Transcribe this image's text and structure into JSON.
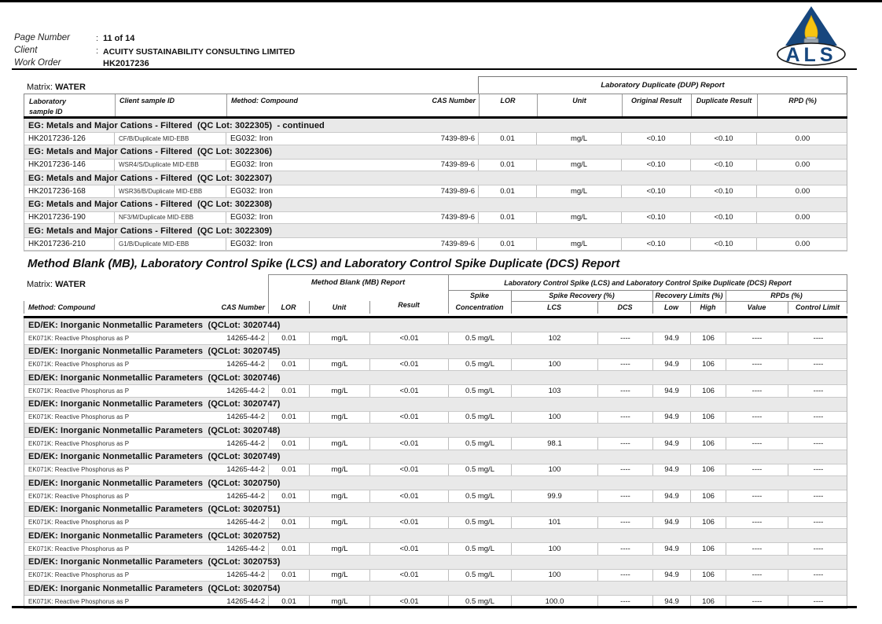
{
  "page_header": {
    "fields": [
      {
        "label": "Page Number",
        "colon": ":",
        "value": "11 of 14"
      },
      {
        "label": "Client",
        "colon": ":",
        "value": "ACUITY SUSTAINABILITY CONSULTING LIMITED"
      },
      {
        "label": "Work Order",
        "colon": "",
        "value": "HK2017236"
      }
    ]
  },
  "logo": {
    "text": "ALS",
    "blue": "#17477e",
    "flame_yellow": "#f8c411"
  },
  "dup_table": {
    "matrix_label": "Matrix:",
    "matrix_value": "WATER",
    "group_header": "Laboratory Duplicate (DUP) Report",
    "columns": {
      "lab_id_line1": "Laboratory",
      "lab_id_line2": "sample ID",
      "client_id": "Client sample ID",
      "method": "Method: Compound",
      "cas": "CAS Number",
      "lor": "LOR",
      "unit": "Unit",
      "original": "Original Result",
      "duplicate": "Duplicate Result",
      "rpd": "RPD (%)"
    },
    "sections": [
      {
        "title": "EG: Metals and Major Cations - Filtered  (QC Lot: 3022305)  - continued",
        "rows": [
          {
            "lab_id": "HK2017236-126",
            "client_id": "CF/B/Duplicate MID-EBB",
            "method": "EG032: Iron",
            "cas": "7439-89-6",
            "lor": "0.01",
            "unit": "mg/L",
            "original": "<0.10",
            "duplicate": "<0.10",
            "rpd": "0.00"
          }
        ]
      },
      {
        "title": "EG: Metals and Major Cations - Filtered  (QC Lot: 3022306)",
        "rows": [
          {
            "lab_id": "HK2017236-146",
            "client_id": "WSR4/S/Duplicate MID-EBB",
            "method": "EG032: Iron",
            "cas": "7439-89-6",
            "lor": "0.01",
            "unit": "mg/L",
            "original": "<0.10",
            "duplicate": "<0.10",
            "rpd": "0.00"
          }
        ]
      },
      {
        "title": "EG: Metals and Major Cations - Filtered  (QC Lot: 3022307)",
        "rows": [
          {
            "lab_id": "HK2017236-168",
            "client_id": "WSR36/B/Duplicate MID-EBB",
            "method": "EG032: Iron",
            "cas": "7439-89-6",
            "lor": "0.01",
            "unit": "mg/L",
            "original": "<0.10",
            "duplicate": "<0.10",
            "rpd": "0.00"
          }
        ]
      },
      {
        "title": "EG: Metals and Major Cations - Filtered  (QC Lot: 3022308)",
        "rows": [
          {
            "lab_id": "HK2017236-190",
            "client_id": "NF3/M/Duplicate MID-EBB",
            "method": "EG032: Iron",
            "cas": "7439-89-6",
            "lor": "0.01",
            "unit": "mg/L",
            "original": "<0.10",
            "duplicate": "<0.10",
            "rpd": "0.00"
          }
        ]
      },
      {
        "title": "EG: Metals and Major Cations - Filtered  (QC Lot: 3022309)",
        "rows": [
          {
            "lab_id": "HK2017236-210",
            "client_id": "G1/B/Duplicate MID-EBB",
            "method": "EG032: Iron",
            "cas": "7439-89-6",
            "lor": "0.01",
            "unit": "mg/L",
            "original": "<0.10",
            "duplicate": "<0.10",
            "rpd": "0.00"
          }
        ]
      }
    ]
  },
  "mb_table": {
    "title": "Method Blank (MB), Laboratory Control Spike (LCS) and Laboratory Control Spike Duplicate (DCS) Report",
    "matrix_label": "Matrix:",
    "matrix_value": "WATER",
    "headers": {
      "mb_group": "Method Blank (MB) Report",
      "lcs_group": "Laboratory Control Spike (LCS) and Laboratory Control Spike Duplicate (DCS) Report",
      "spike_line1": "Spike",
      "spike_line2": "Concentration",
      "spike_recovery": "Spike Recovery (%)",
      "recovery_limits": "Recovery Limits (%)",
      "rpds": "RPDs (%)",
      "method": "Method: Compound",
      "cas": "CAS Number",
      "lor": "LOR",
      "unit": "Unit",
      "result": "Result",
      "lcs": "LCS",
      "dcs": "DCS",
      "low": "Low",
      "high": "High",
      "value": "Value",
      "control_limit": "Control Limit"
    },
    "sections": [
      {
        "title": "ED/EK: Inorganic Nonmetallic Parameters  (QCLot: 3020744)",
        "row": {
          "method": "EK071K: Reactive Phosphorus as P",
          "cas": "14265-44-2",
          "lor": "0.01",
          "unit": "mg/L",
          "result": "<0.01",
          "spike_conc": "0.5 mg/L",
          "lcs": "102",
          "dcs": "----",
          "low": "94.9",
          "high": "106",
          "value": "----",
          "control_limit": "----"
        }
      },
      {
        "title": "ED/EK: Inorganic Nonmetallic Parameters  (QCLot: 3020745)",
        "row": {
          "method": "EK071K: Reactive Phosphorus as P",
          "cas": "14265-44-2",
          "lor": "0.01",
          "unit": "mg/L",
          "result": "<0.01",
          "spike_conc": "0.5 mg/L",
          "lcs": "100",
          "dcs": "----",
          "low": "94.9",
          "high": "106",
          "value": "----",
          "control_limit": "----"
        }
      },
      {
        "title": "ED/EK: Inorganic Nonmetallic Parameters  (QCLot: 3020746)",
        "row": {
          "method": "EK071K: Reactive Phosphorus as P",
          "cas": "14265-44-2",
          "lor": "0.01",
          "unit": "mg/L",
          "result": "<0.01",
          "spike_conc": "0.5 mg/L",
          "lcs": "103",
          "dcs": "----",
          "low": "94.9",
          "high": "106",
          "value": "----",
          "control_limit": "----"
        }
      },
      {
        "title": "ED/EK: Inorganic Nonmetallic Parameters  (QCLot: 3020747)",
        "row": {
          "method": "EK071K: Reactive Phosphorus as P",
          "cas": "14265-44-2",
          "lor": "0.01",
          "unit": "mg/L",
          "result": "<0.01",
          "spike_conc": "0.5 mg/L",
          "lcs": "100",
          "dcs": "----",
          "low": "94.9",
          "high": "106",
          "value": "----",
          "control_limit": "----"
        }
      },
      {
        "title": "ED/EK: Inorganic Nonmetallic Parameters  (QCLot: 3020748)",
        "row": {
          "method": "EK071K: Reactive Phosphorus as P",
          "cas": "14265-44-2",
          "lor": "0.01",
          "unit": "mg/L",
          "result": "<0.01",
          "spike_conc": "0.5 mg/L",
          "lcs": "98.1",
          "dcs": "----",
          "low": "94.9",
          "high": "106",
          "value": "----",
          "control_limit": "----"
        }
      },
      {
        "title": "ED/EK: Inorganic Nonmetallic Parameters  (QCLot: 3020749)",
        "row": {
          "method": "EK071K: Reactive Phosphorus as P",
          "cas": "14265-44-2",
          "lor": "0.01",
          "unit": "mg/L",
          "result": "<0.01",
          "spike_conc": "0.5 mg/L",
          "lcs": "100",
          "dcs": "----",
          "low": "94.9",
          "high": "106",
          "value": "----",
          "control_limit": "----"
        }
      },
      {
        "title": "ED/EK: Inorganic Nonmetallic Parameters  (QCLot: 3020750)",
        "row": {
          "method": "EK071K: Reactive Phosphorus as P",
          "cas": "14265-44-2",
          "lor": "0.01",
          "unit": "mg/L",
          "result": "<0.01",
          "spike_conc": "0.5 mg/L",
          "lcs": "99.9",
          "dcs": "----",
          "low": "94.9",
          "high": "106",
          "value": "----",
          "control_limit": "----"
        }
      },
      {
        "title": "ED/EK: Inorganic Nonmetallic Parameters  (QCLot: 3020751)",
        "row": {
          "method": "EK071K: Reactive Phosphorus as P",
          "cas": "14265-44-2",
          "lor": "0.01",
          "unit": "mg/L",
          "result": "<0.01",
          "spike_conc": "0.5 mg/L",
          "lcs": "101",
          "dcs": "----",
          "low": "94.9",
          "high": "106",
          "value": "----",
          "control_limit": "----"
        }
      },
      {
        "title": "ED/EK: Inorganic Nonmetallic Parameters  (QCLot: 3020752)",
        "row": {
          "method": "EK071K: Reactive Phosphorus as P",
          "cas": "14265-44-2",
          "lor": "0.01",
          "unit": "mg/L",
          "result": "<0.01",
          "spike_conc": "0.5 mg/L",
          "lcs": "100",
          "dcs": "----",
          "low": "94.9",
          "high": "106",
          "value": "----",
          "control_limit": "----"
        }
      },
      {
        "title": "ED/EK: Inorganic Nonmetallic Parameters  (QCLot: 3020753)",
        "row": {
          "method": "EK071K: Reactive Phosphorus as P",
          "cas": "14265-44-2",
          "lor": "0.01",
          "unit": "mg/L",
          "result": "<0.01",
          "spike_conc": "0.5 mg/L",
          "lcs": "100",
          "dcs": "----",
          "low": "94.9",
          "high": "106",
          "value": "----",
          "control_limit": "----"
        }
      },
      {
        "title": "ED/EK: Inorganic Nonmetallic Parameters  (QCLot: 3020754)",
        "row": {
          "method": "EK071K: Reactive Phosphorus as P",
          "cas": "14265-44-2",
          "lor": "0.01",
          "unit": "mg/L",
          "result": "<0.01",
          "spike_conc": "0.5 mg/L",
          "lcs": "100.0",
          "dcs": "----",
          "low": "94.9",
          "high": "106",
          "value": "----",
          "control_limit": "----"
        }
      }
    ]
  }
}
